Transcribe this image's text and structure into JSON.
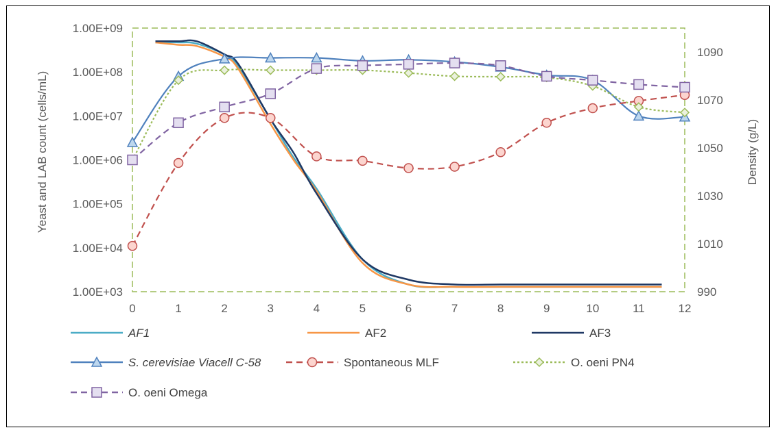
{
  "chart_data": {
    "type": "line",
    "x": [
      0,
      1,
      2,
      3,
      4,
      5,
      6,
      7,
      8,
      9,
      10,
      11,
      12
    ],
    "xlim": [
      0,
      12
    ],
    "ylabel": "Yeast and LAB count (cells/mL)",
    "y2label": "Density (g/L)",
    "y_scale": "log",
    "ylim": [
      1000,
      1000000000
    ],
    "y2lim": [
      990,
      1100
    ],
    "x_ticks": [
      "0",
      "1",
      "2",
      "3",
      "4",
      "5",
      "6",
      "7",
      "8",
      "9",
      "10",
      "11",
      "12"
    ],
    "y_ticks": [
      "1.00E+09",
      "1.00E+08",
      "1.00E+07",
      "1.00E+06",
      "1.00E+05",
      "1.00E+04",
      "1.00E+03"
    ],
    "y2_ticks": [
      "1090",
      "1070",
      "1050",
      "1030",
      "1010",
      "990"
    ],
    "grid": false,
    "legend_placement": "bottom",
    "series": [
      {
        "name": "AF1",
        "axis": "right",
        "color": "#4bacc6",
        "style": "solid",
        "marker": "none",
        "italic": true,
        "x": [
          0.5,
          1,
          1.4,
          2,
          2.3,
          3,
          3.5,
          4,
          5,
          6,
          7,
          8,
          9,
          10,
          11,
          11.5
        ],
        "values": [
          1094,
          1094,
          1093.5,
          1089,
          1084,
          1062,
          1046,
          1033,
          1003.5,
          993,
          992,
          992,
          992,
          992,
          992,
          992
        ]
      },
      {
        "name": "AF2",
        "axis": "right",
        "color": "#f79646",
        "style": "solid",
        "marker": "none",
        "italic": false,
        "x": [
          0.5,
          1,
          1.4,
          2,
          2.3,
          3,
          3.5,
          4,
          5,
          6,
          7,
          8,
          9,
          10,
          11,
          11.5
        ],
        "values": [
          1094,
          1093,
          1092.5,
          1088,
          1083,
          1060,
          1045,
          1032,
          1002,
          993,
          992,
          992,
          992,
          992,
          992,
          992
        ]
      },
      {
        "name": "AF3",
        "axis": "right",
        "color": "#1f3864",
        "style": "solid",
        "marker": "none",
        "italic": false,
        "x": [
          0.5,
          1,
          1.4,
          2,
          2.3,
          3,
          3.5,
          4,
          5,
          6,
          7,
          8,
          9,
          10,
          11,
          11.5
        ],
        "values": [
          1094.5,
          1094.5,
          1094.5,
          1089,
          1085,
          1062,
          1048,
          1031,
          1003.5,
          995,
          993,
          993,
          993,
          993,
          993,
          993
        ]
      },
      {
        "name": "S. cerevisiae Viacell C-58",
        "axis": "left",
        "color": "#4f81bd",
        "style": "solid",
        "marker": "triangle",
        "italic": true,
        "x": [
          0,
          1,
          2,
          3,
          4,
          5,
          6,
          7,
          8,
          9,
          10,
          11,
          12
        ],
        "values": [
          2500000,
          80000000,
          200000000,
          210000000,
          210000000,
          180000000,
          190000000,
          170000000,
          130000000,
          85000000,
          65000000,
          10000000,
          9500000
        ]
      },
      {
        "name": "Spontaneous MLF",
        "axis": "left",
        "color": "#c0504d",
        "style": "dashed",
        "marker": "circle",
        "italic": false,
        "x": [
          0,
          1,
          2,
          3,
          4,
          5,
          6,
          7,
          8,
          9,
          10,
          11,
          12
        ],
        "values": [
          11000,
          850000,
          9000000,
          9000000,
          1200000,
          950000,
          650000,
          700000,
          1500000,
          7000000,
          15000000,
          22000000,
          30000000
        ]
      },
      {
        "name": "O. oeni PN4",
        "axis": "left",
        "color": "#9bbb59",
        "style": "dotted",
        "marker": "diamond",
        "italic": false,
        "x": [
          0,
          1,
          2,
          3,
          4,
          5,
          6,
          7,
          8,
          9,
          10,
          11,
          12
        ],
        "values": [
          1000000,
          65000000,
          110000000,
          110000000,
          110000000,
          110000000,
          95000000,
          80000000,
          78000000,
          75000000,
          48000000,
          16000000,
          12000000
        ]
      },
      {
        "name": "O. oeni Omega",
        "axis": "left",
        "color": "#8064a2",
        "style": "dashed",
        "marker": "square",
        "italic": false,
        "x": [
          0,
          1,
          2,
          3,
          4,
          5,
          6,
          7,
          8,
          9,
          10,
          11,
          12
        ],
        "values": [
          1000000,
          7000000,
          16000000,
          32000000,
          120000000,
          140000000,
          150000000,
          160000000,
          140000000,
          80000000,
          65000000,
          52000000,
          45000000
        ]
      }
    ]
  }
}
